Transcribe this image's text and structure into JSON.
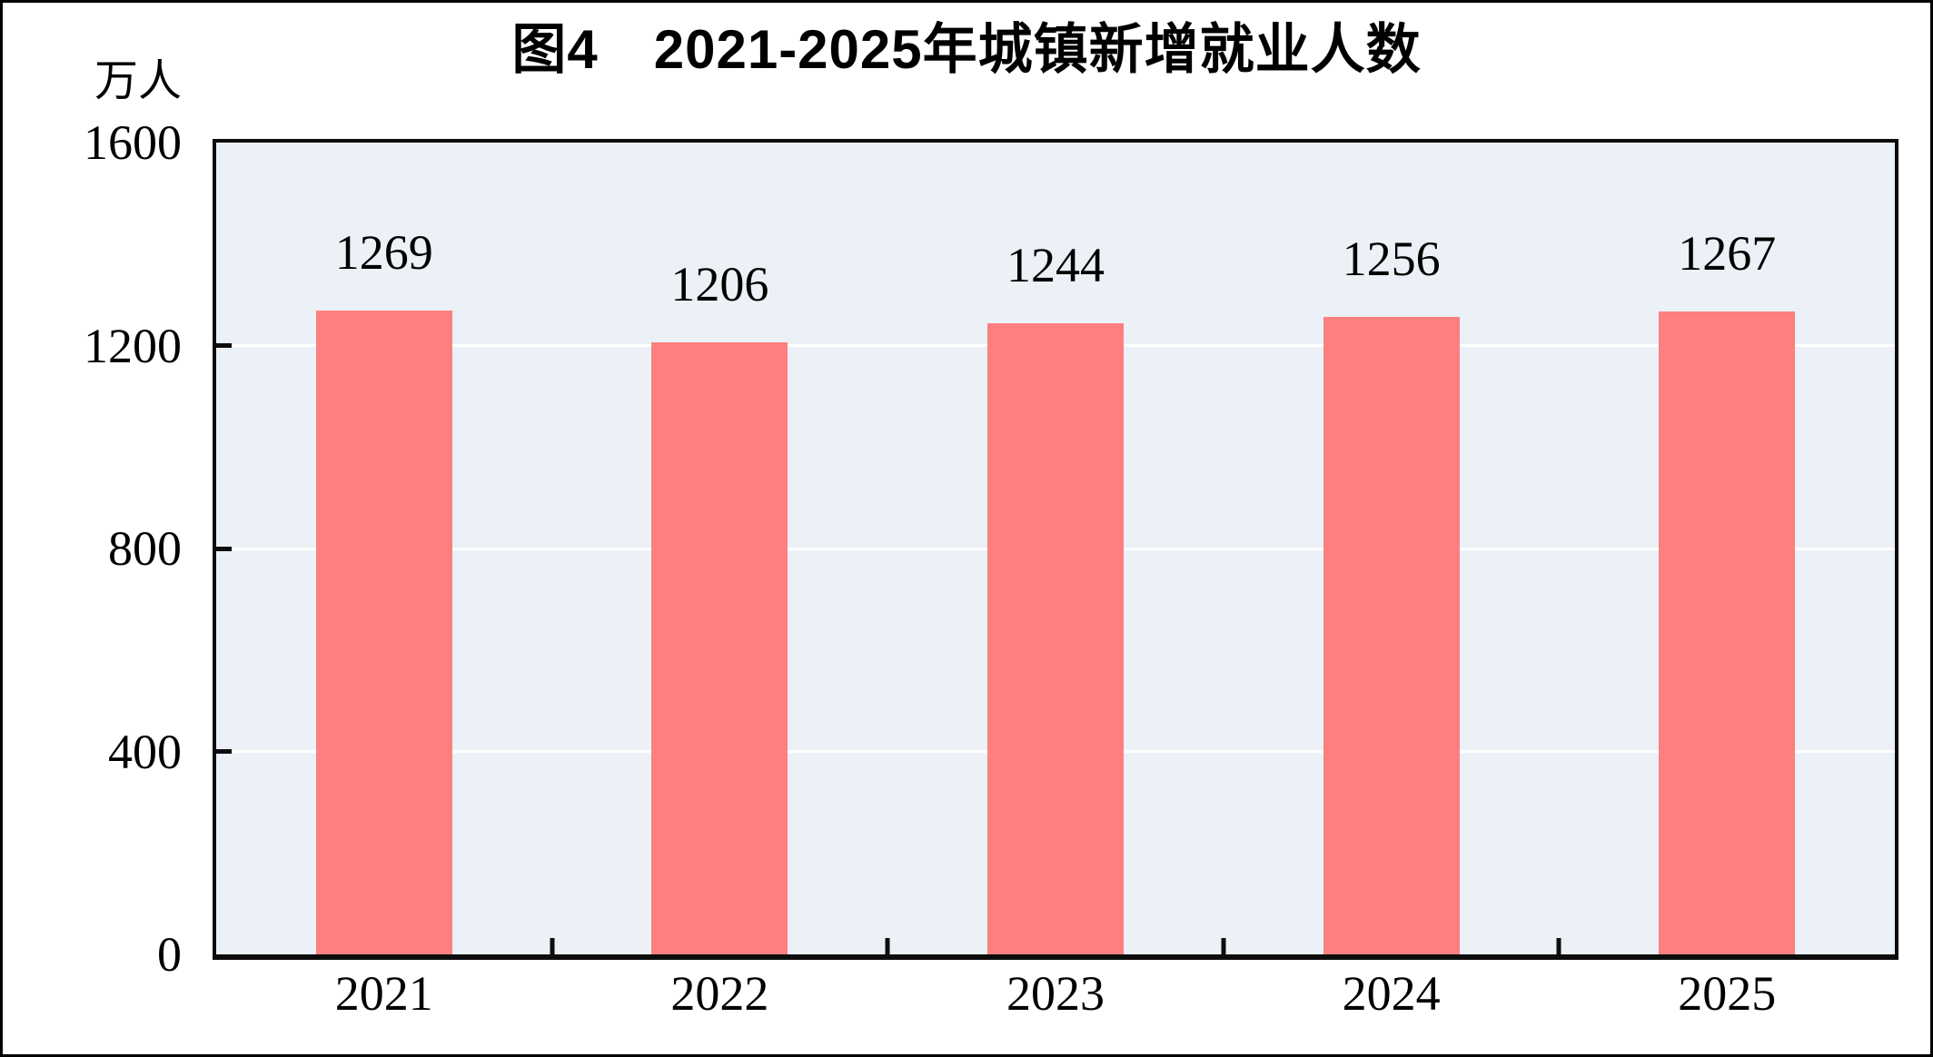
{
  "figure": {
    "title": "图4　2021-2025年城镇新增就业人数",
    "y_axis_unit": "万人"
  },
  "chart_data": {
    "type": "bar",
    "title": "图4　2021-2025年城镇新增就业人数",
    "categories": [
      "2021",
      "2022",
      "2023",
      "2024",
      "2025"
    ],
    "values": [
      1269,
      1206,
      1244,
      1256,
      1267
    ],
    "xlabel": "",
    "ylabel": "万人",
    "ylim": [
      0,
      1600
    ],
    "yticks": [
      0,
      400,
      800,
      1200,
      1600
    ],
    "gridline_values": [
      400,
      800,
      1200
    ],
    "grid": true,
    "legend": "none",
    "data_labels": true,
    "colors": {
      "bar": "#fd7f7f",
      "plot_background": "#ebf1f6",
      "gridline": "#ffffff",
      "axis": "#0d0d0d",
      "text": "#000000"
    }
  }
}
